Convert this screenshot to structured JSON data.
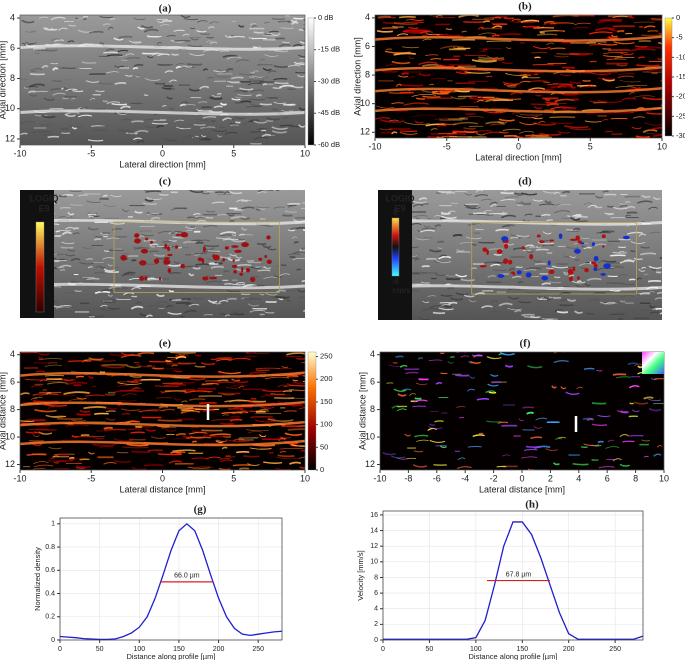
{
  "chart_data": [
    {
      "type": "image",
      "title": "(a)",
      "xlabel": "Lateral direction [mm]",
      "ylabel": "Axial direction [mm]",
      "xlim": [
        -10,
        10
      ],
      "ylim": [
        12.4,
        3.8
      ],
      "xticks": [
        -10,
        -5,
        0,
        5,
        10
      ],
      "yticks": [
        4,
        6,
        8,
        10,
        12
      ],
      "colormap": "gray",
      "colorbar": {
        "colormap": "gray",
        "lim": [
          -60,
          0
        ],
        "ticks": [
          {
            "value": 0,
            "label": "0 dB"
          },
          {
            "value": -15,
            "label": "-15 dB"
          },
          {
            "value": -30,
            "label": "-30 dB"
          },
          {
            "value": -45,
            "label": "-45 dB"
          },
          {
            "value": -60,
            "label": "-60 dB"
          }
        ]
      }
    },
    {
      "type": "image",
      "title": "(b)",
      "xlabel": "Lateral direction [mm]",
      "ylabel": "Axial direction [mm]",
      "xlim": [
        -10,
        10
      ],
      "ylim": [
        12.4,
        3.8
      ],
      "xticks": [
        -10,
        -5,
        0,
        5,
        10
      ],
      "yticks": [
        4,
        6,
        8,
        10,
        12
      ],
      "colormap": "hot",
      "colorbar": {
        "colormap": "hot",
        "lim": [
          -30,
          0
        ],
        "ticks": [
          0,
          -5,
          -10,
          -15,
          -20,
          -25,
          -30
        ]
      }
    },
    {
      "type": "image",
      "title": "(c)",
      "colormap": "gray-red",
      "logo": [
        "LOGIQ",
        "E9"
      ],
      "colorbar": {
        "colormap": "red"
      }
    },
    {
      "type": "image",
      "title": "(d)",
      "colormap": "gray-doppler",
      "logo": [
        "LOGIQ",
        "E9"
      ],
      "colorbar": {
        "colormap": "doppler",
        "labels": [
          "6",
          "-6",
          "cm/s"
        ]
      }
    },
    {
      "type": "image",
      "title": "(e)",
      "xlabel": "Lateral distance [mm]",
      "ylabel": "Axial distance [mm]",
      "xlim": [
        -10,
        10
      ],
      "ylim": [
        12.4,
        3.8
      ],
      "xticks": [
        -10,
        -5,
        0,
        5,
        10
      ],
      "yticks": [
        4,
        6,
        8,
        10,
        12
      ],
      "colormap": "hot",
      "colorbar": {
        "colormap": "hot2",
        "lim": [
          0,
          260
        ],
        "ticks": [
          0,
          50,
          100,
          150,
          200,
          250
        ]
      }
    },
    {
      "type": "image",
      "title": "(f)",
      "xlabel": "Lateral distance [mm]",
      "ylabel": "Axial distance [mm]",
      "xlim": [
        -10,
        10
      ],
      "ylim": [
        12.4,
        3.8
      ],
      "xticks": [
        -10,
        -8,
        -6,
        -4,
        -2,
        0,
        2,
        4,
        6,
        8,
        10
      ],
      "yticks": [
        4,
        6,
        8,
        10,
        12
      ],
      "colormap": "rainbow"
    },
    {
      "type": "line",
      "title": "(g)",
      "xlabel": "Distance along profile [µm]",
      "ylabel": "Normalized density",
      "x": [
        0,
        10,
        20,
        30,
        40,
        50,
        60,
        70,
        80,
        90,
        100,
        110,
        120,
        130,
        140,
        150,
        160,
        170,
        180,
        190,
        200,
        210,
        220,
        230,
        240,
        250,
        260,
        270,
        280
      ],
      "series": [
        {
          "color": "#1f1fd0",
          "values": [
            0.03,
            0.025,
            0.02,
            0.012,
            0.008,
            0.005,
            0.005,
            0.01,
            0.03,
            0.06,
            0.11,
            0.2,
            0.36,
            0.56,
            0.77,
            0.94,
            1.0,
            0.94,
            0.77,
            0.56,
            0.36,
            0.2,
            0.1,
            0.05,
            0.04,
            0.05,
            0.06,
            0.07,
            0.075
          ]
        }
      ],
      "xlim": [
        0,
        280
      ],
      "ylim": [
        0,
        1.05
      ],
      "xticks": [
        0,
        50,
        100,
        150,
        200,
        250
      ],
      "yticks": [
        0,
        0.2,
        0.4,
        0.6,
        0.8,
        1
      ],
      "grid": true,
      "fwhm": {
        "text": "66.0 µm",
        "y": 0.5,
        "x": [
          127,
          193
        ],
        "color": "#d62020"
      }
    },
    {
      "type": "line",
      "title": "(h)",
      "xlabel": "Distance along profile [µm]",
      "ylabel": "Velocity [mm/s]",
      "x": [
        0,
        10,
        20,
        30,
        40,
        50,
        60,
        70,
        80,
        90,
        100,
        110,
        120,
        130,
        140,
        150,
        160,
        170,
        180,
        190,
        200,
        210,
        220,
        230,
        240,
        250,
        260,
        270,
        280
      ],
      "series": [
        {
          "color": "#1f1fd0",
          "values": [
            0.1,
            0.1,
            0.1,
            0.1,
            0.1,
            0.1,
            0.1,
            0.1,
            0.1,
            0.1,
            0.3,
            2.5,
            7,
            12,
            15.1,
            15.1,
            13.5,
            10.5,
            7,
            3.5,
            0.8,
            0.1,
            0.1,
            0.1,
            0.1,
            0.1,
            0.1,
            0.1,
            0.5
          ]
        }
      ],
      "xlim": [
        0,
        280
      ],
      "ylim": [
        0,
        16.5
      ],
      "xticks": [
        0,
        50,
        100,
        150,
        200,
        250
      ],
      "yticks": [
        0,
        2,
        4,
        6,
        8,
        10,
        12,
        14,
        16
      ],
      "grid": true,
      "fwhm": {
        "text": "67.8 µm",
        "y": 7.6,
        "x": [
          112,
          179.8
        ],
        "color": "#d62020"
      }
    }
  ]
}
